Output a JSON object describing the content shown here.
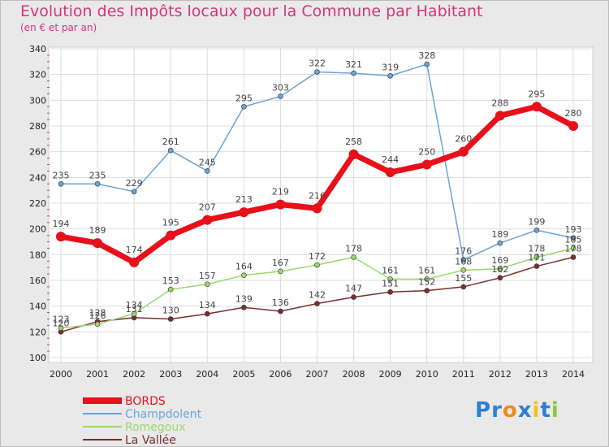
{
  "title": "Evolution des Impôts locaux pour la Commune par Habitant",
  "subtitle": "(en € et par an)",
  "logo": "Proxiti",
  "chart_data": {
    "type": "line",
    "x": [
      2000,
      2001,
      2002,
      2003,
      2004,
      2005,
      2006,
      2007,
      2008,
      2009,
      2010,
      2011,
      2012,
      2013,
      2014
    ],
    "ylim": [
      100,
      340
    ],
    "yticks": [
      100,
      120,
      140,
      160,
      180,
      200,
      220,
      240,
      260,
      280,
      300,
      320,
      340
    ],
    "grid": true,
    "legend": "bottom-left",
    "series": [
      {
        "name": "BORDS",
        "color": "#e8101b",
        "values": [
          194,
          189,
          174,
          195,
          207,
          213,
          219,
          216,
          258,
          244,
          250,
          260,
          288,
          295,
          280
        ]
      },
      {
        "name": "Champdolent",
        "color": "#6ba3d6",
        "values": [
          235,
          235,
          229,
          261,
          245,
          295,
          303,
          322,
          321,
          319,
          328,
          176,
          189,
          199,
          193
        ]
      },
      {
        "name": "Romegoux",
        "color": "#99d96b",
        "values": [
          123,
          126,
          134,
          153,
          157,
          164,
          167,
          172,
          178,
          161,
          161,
          168,
          169,
          178,
          185
        ]
      },
      {
        "name": "La Vallée",
        "color": "#7a2e2e",
        "values": [
          120,
          128,
          131,
          130,
          134,
          139,
          136,
          142,
          147,
          151,
          152,
          155,
          162,
          171,
          178
        ]
      }
    ]
  }
}
